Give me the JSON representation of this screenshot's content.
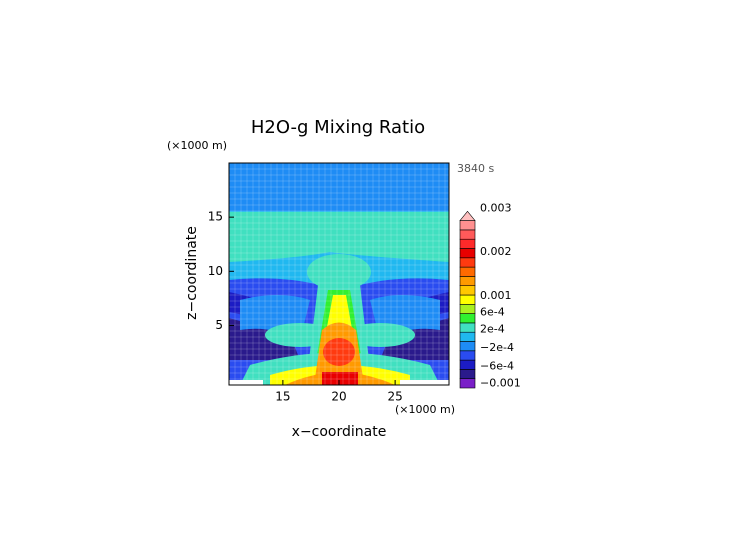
{
  "chart_data": {
    "type": "contour",
    "title": "H2O-g Mixing Ratio",
    "y_unit": "(×1000 m)",
    "x_unit": "(×1000 m)",
    "time_label": "3840 s",
    "xlabel": "x−coordinate",
    "ylabel": "z−coordinate",
    "xlim": [
      10.2,
      29.8
    ],
    "xticks": [
      15,
      20,
      25
    ],
    "ylim": [
      -0.5,
      20
    ],
    "yticks": [
      5,
      10,
      15
    ],
    "colorbar": {
      "colors": [
        "#7a1fc8",
        "#2a1a8c",
        "#1c1cc4",
        "#2a4cf0",
        "#1e8cf5",
        "#20b8f0",
        "#40e0c0",
        "#30f030",
        "#a8f020",
        "#ffff00",
        "#ffc800",
        "#ff9a00",
        "#ff6a00",
        "#ff3a10",
        "#e80000",
        "#ff2a2a",
        "#ff5a5a",
        "#ff9090",
        "#ffc0c0"
      ],
      "labels": [
        "−0.001",
        "−6e-4",
        "−2e-4",
        "2e-4",
        "6e-4",
        "0.001",
        "0.002",
        "0.003"
      ]
    }
  }
}
